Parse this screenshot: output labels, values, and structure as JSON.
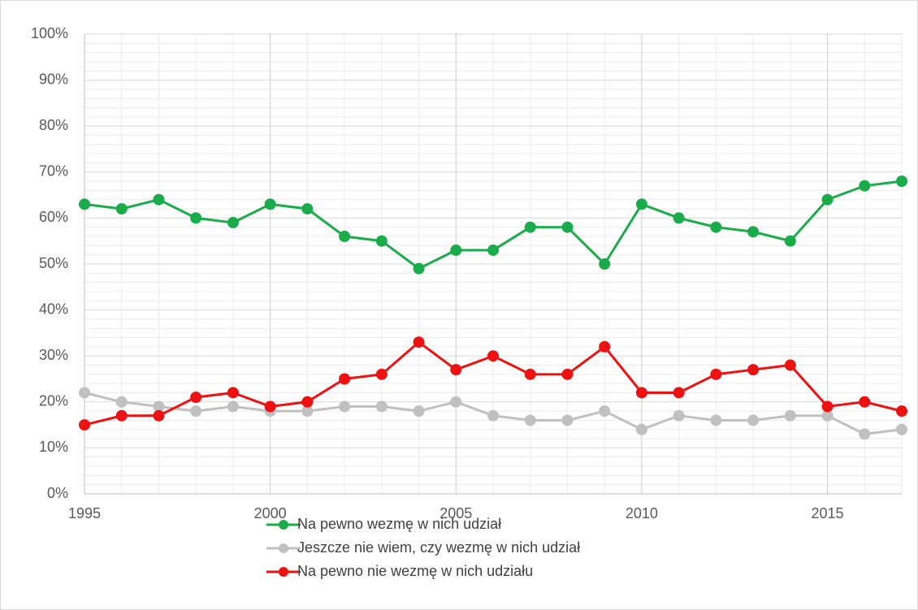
{
  "chart_data": {
    "type": "line",
    "x": [
      1995,
      1996,
      1997,
      1998,
      1999,
      2000,
      2001,
      2002,
      2003,
      2004,
      2005,
      2006,
      2007,
      2008,
      2009,
      2010,
      2011,
      2012,
      2013,
      2014,
      2015,
      2016,
      2017
    ],
    "series": [
      {
        "name": "Na pewno wezmę w nich udział",
        "color": "#1aab4a",
        "values": [
          63,
          62,
          64,
          60,
          59,
          63,
          62,
          56,
          55,
          49,
          53,
          53,
          58,
          58,
          50,
          63,
          60,
          58,
          57,
          55,
          64,
          67,
          68
        ]
      },
      {
        "name": "Jeszcze nie wiem, czy wezmę w nich udział",
        "color": "#c0c0c0",
        "values": [
          22,
          20,
          19,
          18,
          19,
          18,
          18,
          19,
          19,
          18,
          20,
          17,
          16,
          16,
          18,
          14,
          17,
          16,
          16,
          17,
          17,
          13,
          14
        ]
      },
      {
        "name": "Na pewno nie wezmę w nich udziału",
        "color": "#ee1111",
        "values": [
          15,
          17,
          17,
          21,
          22,
          19,
          20,
          25,
          26,
          33,
          27,
          30,
          26,
          26,
          32,
          22,
          22,
          26,
          27,
          28,
          19,
          20,
          18
        ]
      }
    ],
    "xlim": [
      1995,
      2017
    ],
    "xticks": [
      1995,
      2000,
      2005,
      2010,
      2015
    ],
    "ylim": [
      0,
      100
    ],
    "yticks": [
      {
        "value": 0,
        "label": "0%"
      },
      {
        "value": 10,
        "label": "10%"
      },
      {
        "value": 20,
        "label": "20%"
      },
      {
        "value": 30,
        "label": "30%"
      },
      {
        "value": 40,
        "label": "40%"
      },
      {
        "value": 50,
        "label": "50%"
      },
      {
        "value": 60,
        "label": "60%"
      },
      {
        "value": 70,
        "label": "70%"
      },
      {
        "value": 80,
        "label": "80%"
      },
      {
        "value": 90,
        "label": "90%"
      },
      {
        "value": 100,
        "label": "100%"
      }
    ],
    "grid": true,
    "minor_grid": true,
    "legend": "bottom"
  }
}
